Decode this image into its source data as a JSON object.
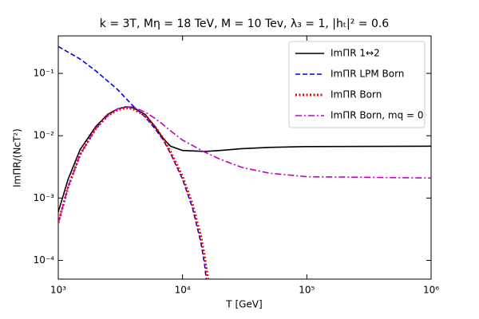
{
  "chart_data": {
    "type": "line",
    "title": "k = 3T, Mη = 18 TeV, M = 10 Tev, λ₃ = 1, |hₜ|² = 0.6",
    "xlabel": "T [GeV]",
    "ylabel": "ImΠR/(NcT²)",
    "xscale": "log",
    "yscale": "log",
    "xlim": [
      1000,
      1000000
    ],
    "ylim": [
      5e-05,
      0.4
    ],
    "xticks": [
      {
        "value": 1000,
        "label": "10³"
      },
      {
        "value": 10000,
        "label": "10⁴"
      },
      {
        "value": 100000,
        "label": "10⁵"
      },
      {
        "value": 1000000,
        "label": "10⁶"
      }
    ],
    "yticks": [
      {
        "value": 0.0001,
        "label": "10⁻⁴"
      },
      {
        "value": 0.001,
        "label": "10⁻³"
      },
      {
        "value": 0.01,
        "label": "10⁻²"
      },
      {
        "value": 0.1,
        "label": "10⁻¹"
      }
    ],
    "legend": "upper right",
    "series": [
      {
        "name": "ImΠR 1↔2",
        "color": "#000000",
        "dash": "solid",
        "x": [
          1000,
          1200,
          1500,
          2000,
          2500,
          3000,
          3500,
          4000,
          5000,
          6000,
          7000,
          8000,
          10000,
          15000,
          20000,
          30000,
          50000,
          100000,
          1000000
        ],
        "values": [
          0.0006,
          0.002,
          0.006,
          0.014,
          0.022,
          0.027,
          0.029,
          0.028,
          0.022,
          0.014,
          0.009,
          0.0068,
          0.0058,
          0.0056,
          0.0058,
          0.0062,
          0.0065,
          0.0067,
          0.0068
        ]
      },
      {
        "name": "ImΠR LPM Born",
        "color": "#0000ee",
        "dash": "dashed",
        "x": [
          1000,
          1500,
          2000,
          3000,
          4000,
          5000,
          6000,
          7000,
          8000,
          10000,
          12000,
          14000,
          15000,
          15500
        ],
        "values": [
          0.27,
          0.17,
          0.11,
          0.055,
          0.03,
          0.02,
          0.013,
          0.0085,
          0.0052,
          0.002,
          0.0007,
          0.0002,
          9e-05,
          5e-05
        ]
      },
      {
        "name": "ImΠR Born",
        "color": "#ee0000",
        "dash": "dotted",
        "x": [
          1000,
          1200,
          1500,
          2000,
          2500,
          3000,
          3500,
          4000,
          5000,
          6000,
          7000,
          8000,
          10000,
          12000,
          14000,
          15000,
          16000
        ],
        "values": [
          0.0004,
          0.0015,
          0.005,
          0.013,
          0.021,
          0.026,
          0.028,
          0.027,
          0.021,
          0.014,
          0.009,
          0.0055,
          0.0022,
          0.0008,
          0.00025,
          0.00012,
          5e-05
        ]
      },
      {
        "name": "ImΠR Born, mq = 0",
        "color": "#bf00bf",
        "dash": "dashdot",
        "x": [
          1000,
          1200,
          1500,
          2000,
          2500,
          3000,
          3500,
          4000,
          5000,
          6000,
          7000,
          8000,
          10000,
          15000,
          20000,
          30000,
          50000,
          100000,
          1000000
        ],
        "values": [
          0.0004,
          0.0015,
          0.005,
          0.013,
          0.021,
          0.027,
          0.029,
          0.029,
          0.024,
          0.019,
          0.015,
          0.012,
          0.0085,
          0.0055,
          0.0042,
          0.0031,
          0.0025,
          0.0022,
          0.0021
        ]
      }
    ]
  }
}
